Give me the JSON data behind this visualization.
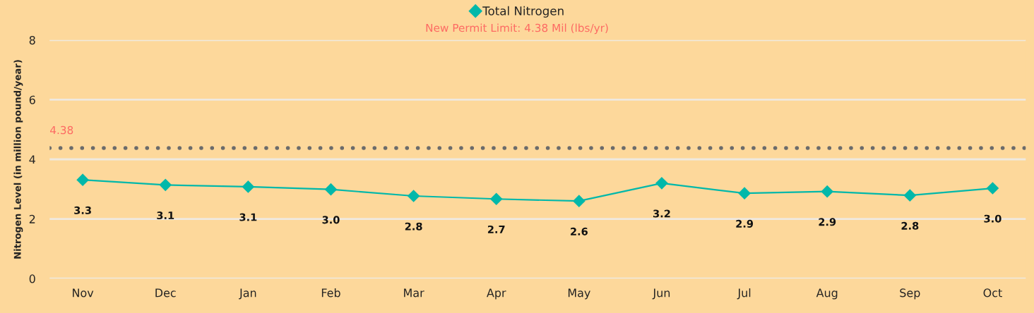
{
  "chart_data": {
    "type": "line",
    "title": "New Permit Limit: 4.38 Mil (lbs/yr)",
    "ylabel": "Nitrogen Level (in million pound/year)",
    "categories": [
      "Nov",
      "Dec",
      "Jan",
      "Feb",
      "Mar",
      "Apr",
      "May",
      "Jun",
      "Jul",
      "Aug",
      "Sep",
      "Oct"
    ],
    "series": [
      {
        "name": "Total Nitrogen",
        "color": "#01b8aa",
        "values": [
          3.31,
          3.14,
          3.08,
          2.99,
          2.77,
          2.67,
          2.6,
          3.2,
          2.86,
          2.92,
          2.79,
          3.03
        ],
        "value_labels": [
          "3.3",
          "3.1",
          "3.1",
          "3.0",
          "2.8",
          "2.7",
          "2.6",
          "3.2",
          "2.9",
          "2.9",
          "2.8",
          "3.0"
        ]
      }
    ],
    "ylim": [
      0,
      8
    ],
    "yticks": [
      0,
      2,
      4,
      6,
      8
    ],
    "grid": "y",
    "legend": "top",
    "marker": "diamond",
    "line_style": "solid",
    "ref_lines": [
      {
        "axis": "y",
        "value": 4.38,
        "label": "4.38",
        "color": "#6b6b6b",
        "line_style": "dotted"
      }
    ]
  }
}
